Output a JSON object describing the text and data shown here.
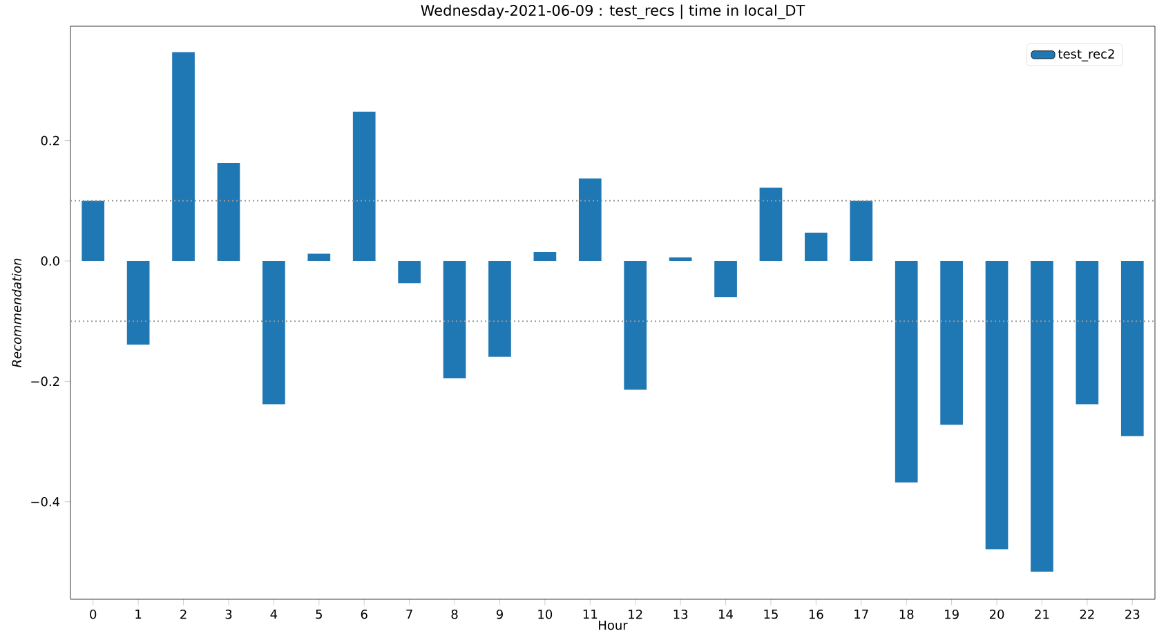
{
  "chart_data": {
    "type": "bar",
    "title": "Wednesday-2021-06-09 : test_recs | time in local_DT",
    "xlabel": "Hour",
    "ylabel": "Recommendation",
    "categories": [
      "0",
      "1",
      "2",
      "3",
      "4",
      "5",
      "6",
      "7",
      "8",
      "9",
      "10",
      "11",
      "12",
      "13",
      "14",
      "15",
      "16",
      "17",
      "18",
      "19",
      "20",
      "21",
      "22",
      "23"
    ],
    "series": [
      {
        "name": "test_rec2",
        "color": "#1f77b4",
        "values": [
          0.1,
          -0.139,
          0.347,
          0.163,
          -0.238,
          0.012,
          0.248,
          -0.037,
          -0.195,
          -0.159,
          0.015,
          0.137,
          -0.214,
          0.006,
          -0.06,
          0.122,
          0.047,
          0.1,
          -0.368,
          -0.272,
          -0.479,
          -0.516,
          -0.238,
          -0.291
        ]
      }
    ],
    "ylim": [
      -0.562,
      0.39
    ],
    "yticks": [
      {
        "value": -0.4,
        "label": "−0.4"
      },
      {
        "value": -0.2,
        "label": "−0.2"
      },
      {
        "value": 0.0,
        "label": "0.0"
      },
      {
        "value": 0.2,
        "label": "0.2"
      }
    ],
    "ref_lines": [
      {
        "axis": "y",
        "value": 0.1,
        "color": "#999999",
        "line_style": "dotted"
      },
      {
        "axis": "y",
        "value": -0.1,
        "color": "#999999",
        "line_style": "dotted"
      }
    ],
    "legend": "top right",
    "grid": false
  }
}
